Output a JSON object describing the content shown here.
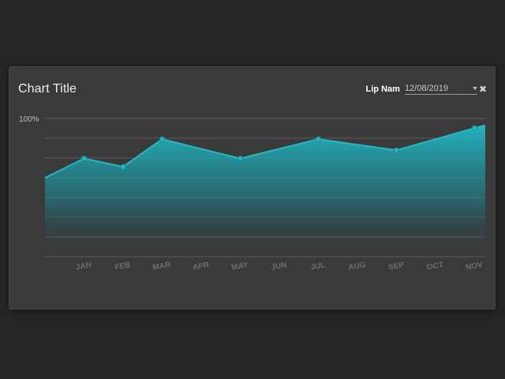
{
  "header": {
    "title": "Chart Title",
    "filter_label": "Lip Nam",
    "date_value": "12/08/2019"
  },
  "colors": {
    "background": "#262626",
    "card": "#3a3a3a",
    "line": "#26b7c4",
    "gridline": "#5a5a5a",
    "axis_text": "#6d6d6d"
  },
  "icons": {
    "dropdown": "chevron-down-icon",
    "close": "close-icon"
  },
  "chart_data": {
    "type": "area",
    "categories": [
      "",
      "JAN",
      "FEB",
      "MAR",
      "APR",
      "MAY",
      "JUN",
      "JUL",
      "AUG",
      "SEP",
      "OCT",
      "NOV"
    ],
    "series": [
      {
        "values": [
          57,
          71,
          65,
          85,
          null,
          71,
          null,
          85,
          null,
          77,
          null,
          93
        ]
      }
    ],
    "end_value": 95,
    "ylim": [
      0,
      100
    ],
    "ytick_labels": [
      {
        "value": 100,
        "label": "100%"
      }
    ],
    "gridlines": [
      0,
      14.3,
      28.6,
      42.9,
      57.1,
      71.4,
      85.7,
      100
    ],
    "grid": true,
    "xlabel": "",
    "ylabel": ""
  }
}
